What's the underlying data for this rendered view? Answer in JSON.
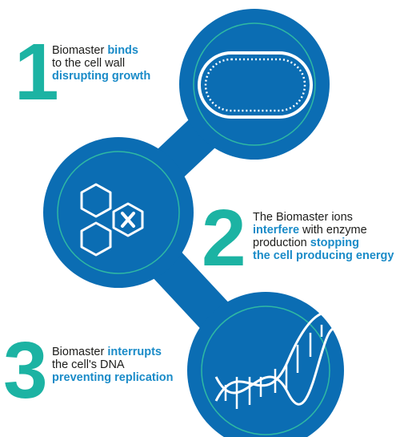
{
  "steps": [
    {
      "number": "1",
      "lines": [
        [
          {
            "text": "Biomaster ",
            "bold": false
          },
          {
            "text": "binds",
            "bold": true
          }
        ],
        [
          {
            "text": "to the cell wall",
            "bold": false
          }
        ],
        [
          {
            "text": "disrupting growth",
            "bold": true
          }
        ]
      ]
    },
    {
      "number": "2",
      "lines": [
        [
          {
            "text": "The Biomaster ions",
            "bold": false
          }
        ],
        [
          {
            "text": "interfere",
            "bold": true
          },
          {
            "text": " with enzyme",
            "bold": false
          }
        ],
        [
          {
            "text": "production ",
            "bold": false
          },
          {
            "text": "stopping",
            "bold": true
          }
        ],
        [
          {
            "text": "the cell producing energy",
            "bold": true
          }
        ]
      ]
    },
    {
      "number": "3",
      "lines": [
        [
          {
            "text": "Biomaster ",
            "bold": false
          },
          {
            "text": "interrupts",
            "bold": true
          }
        ],
        [
          {
            "text": "the cell's DNA",
            "bold": false
          }
        ],
        [
          {
            "text": "preventing replication",
            "bold": true
          }
        ]
      ]
    }
  ]
}
